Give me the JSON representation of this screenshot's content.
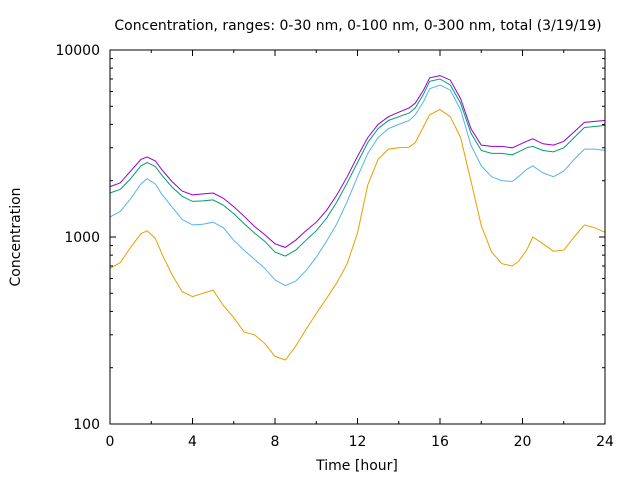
{
  "chart_data": {
    "type": "line",
    "title": "Concentration, ranges: 0-30 nm, 0-100 nm, 0-300 nm, total (3/19/19)",
    "xlabel": "Time [hour]",
    "ylabel": "Concentration",
    "xlim": [
      0,
      24
    ],
    "ylim": [
      100,
      10000
    ],
    "y_scale": "log",
    "grid": false,
    "legend": "none",
    "x_ticks": [
      "0",
      "4",
      "8",
      "12",
      "16",
      "20",
      "24"
    ],
    "y_ticks": [
      "100",
      "1000",
      "10000"
    ],
    "x": [
      0,
      0.5,
      1,
      1.5,
      1.8,
      2.2,
      2.5,
      3,
      3.5,
      4,
      4.5,
      5,
      5.5,
      6,
      6.5,
      7,
      7.5,
      8,
      8.5,
      9,
      9.5,
      10,
      10.5,
      11,
      11.5,
      12,
      12.5,
      13,
      13.5,
      14,
      14.5,
      14.8,
      15.2,
      15.5,
      16,
      16.5,
      17,
      17.5,
      18,
      18.5,
      19,
      19.5,
      19.8,
      20.2,
      20.5,
      21,
      21.5,
      22,
      22.5,
      23,
      23.5,
      24
    ],
    "series": [
      {
        "color": "#e69f00",
        "values": [
          680,
          730,
          880,
          1040,
          1080,
          980,
          820,
          630,
          510,
          480,
          500,
          520,
          430,
          370,
          310,
          300,
          270,
          230,
          220,
          260,
          320,
          390,
          470,
          570,
          720,
          1050,
          1900,
          2600,
          2950,
          3000,
          3020,
          3200,
          3900,
          4500,
          4800,
          4400,
          3400,
          2000,
          1150,
          830,
          720,
          700,
          740,
          850,
          1000,
          920,
          840,
          850,
          1000,
          1160,
          1120,
          1060
        ]
      },
      {
        "color": "#56b4e9",
        "values": [
          1280,
          1370,
          1600,
          1920,
          2050,
          1920,
          1700,
          1450,
          1240,
          1160,
          1170,
          1200,
          1120,
          960,
          850,
          760,
          680,
          590,
          550,
          580,
          660,
          780,
          950,
          1180,
          1550,
          2100,
          2800,
          3400,
          3800,
          4000,
          4200,
          4500,
          5300,
          6200,
          6500,
          6100,
          4800,
          3100,
          2400,
          2100,
          2000,
          1980,
          2100,
          2300,
          2400,
          2200,
          2100,
          2250,
          2600,
          2950,
          2950,
          2900
        ]
      },
      {
        "color": "#009e73",
        "values": [
          1720,
          1800,
          2050,
          2400,
          2500,
          2380,
          2150,
          1850,
          1650,
          1550,
          1560,
          1580,
          1480,
          1330,
          1180,
          1050,
          950,
          830,
          790,
          850,
          960,
          1080,
          1260,
          1540,
          1950,
          2500,
          3200,
          3800,
          4200,
          4400,
          4600,
          4900,
          5800,
          6800,
          7000,
          6500,
          5200,
          3600,
          2900,
          2800,
          2800,
          2750,
          2850,
          3000,
          3050,
          2900,
          2850,
          3000,
          3400,
          3850,
          3900,
          3950
        ]
      },
      {
        "color": "#9400d3",
        "values": [
          1860,
          1950,
          2250,
          2600,
          2680,
          2550,
          2300,
          1980,
          1760,
          1680,
          1700,
          1720,
          1610,
          1450,
          1290,
          1140,
          1030,
          920,
          880,
          960,
          1080,
          1200,
          1390,
          1680,
          2100,
          2700,
          3400,
          4000,
          4400,
          4650,
          4900,
          5200,
          6100,
          7100,
          7300,
          6900,
          5500,
          3800,
          3100,
          3050,
          3050,
          3000,
          3100,
          3250,
          3350,
          3150,
          3100,
          3250,
          3650,
          4100,
          4150,
          4200
        ]
      }
    ]
  }
}
